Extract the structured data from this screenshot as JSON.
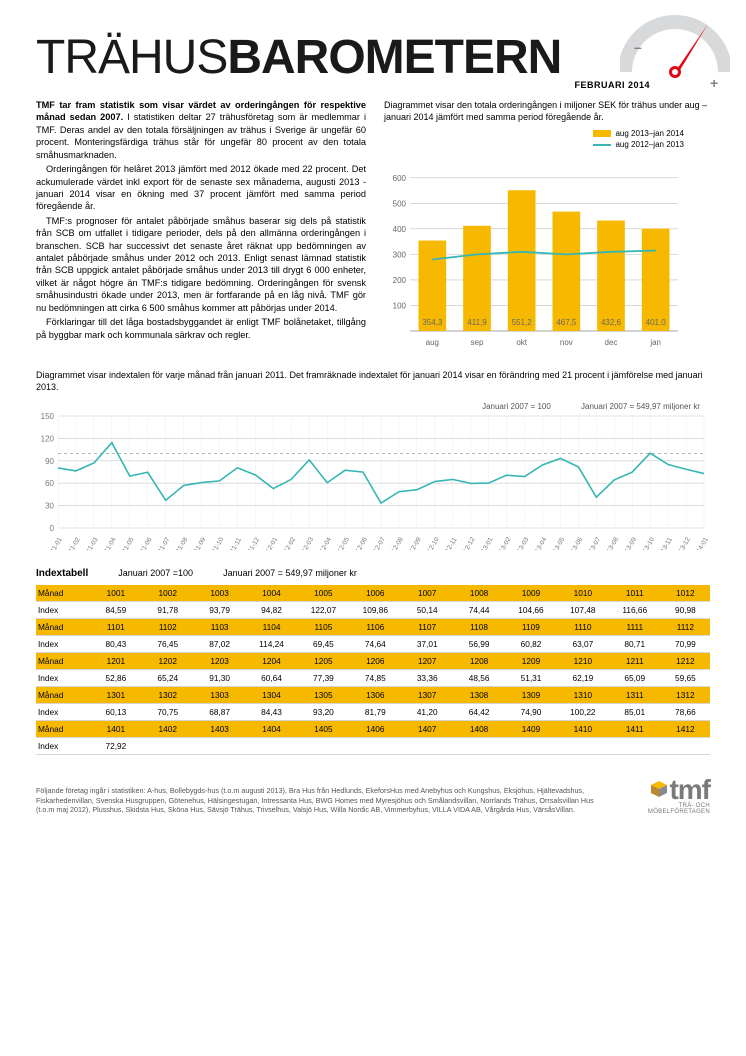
{
  "header": {
    "title_light": "TRÄHUS",
    "title_bold": "BAROMETERN",
    "subtitle": "FEBRUARI 2014"
  },
  "gauge": {
    "dial_color": "#d7d9db",
    "needle_color": "#e30613",
    "plus": "+",
    "minus": "–"
  },
  "intro": {
    "p1_lead": "TMF tar fram statistik som visar värdet av orderingången för respektive månad sedan 2007.",
    "p1_rest": " I statistiken deltar 27 trähusföretag som är medlemmar i TMF. Deras andel av den totala försäljningen av trähus i Sverige är ungefär 60 procent. Monteringsfärdiga trähus står för ungefär 80 procent av den totala småhusmarknaden.",
    "p2": "Orderingången för helåret 2013 jämfört med 2012 ökade med 22 procent. Det ackumulerade värdet inkl export för de senaste sex månaderna, augusti 2013 - januari 2014 visar en ökning med 37 procent jämfört med samma period föregående år.",
    "p3": "TMF:s prognoser för antalet påbörjade småhus baserar sig dels på statistik från SCB om utfallet i tidigare perioder, dels på den allmänna orderingången i branschen. SCB har successivt det senaste året räknat upp bedömningen av antalet påbörjade småhus under 2012 och 2013. Enligt senast lämnad statistik från SCB uppgick antalet påbörjade småhus under 2013 till drygt 6 000 enheter, vilket är något högre än TMF:s tidigare bedömning. Orderingången för svensk småhusindustri ökade under 2013, men är fortfarande på en låg nivå. TMF gör nu bedömningen att cirka 6 500 småhus kommer att påbörjas under 2014.",
    "p4": "Förklaringar till det låga bostadsbyggandet är enligt TMF bolånetaket, tillgång på byggbar mark och kommunala särkrav och regler."
  },
  "barchart": {
    "caption": "Diagrammet visar den totala orderingången i miljoner SEK för trähus under aug – januari 2014 jämfört med samma period föregående år.",
    "legend_bar": "aug 2013–jan 2014",
    "legend_line": "aug 2012–jan 2013",
    "categories": [
      "aug",
      "sep",
      "okt",
      "nov",
      "dec",
      "jan"
    ],
    "bar_values": [
      354.3,
      411.9,
      551.2,
      467.5,
      432.6,
      401.0
    ],
    "bar_labels": [
      "354,3",
      "411,9",
      "551,2",
      "467,5",
      "432,6",
      "401,0"
    ],
    "line_values": [
      280,
      300,
      310,
      300,
      310,
      315
    ],
    "ylim": [
      0,
      650
    ],
    "yticks": [
      100,
      200,
      300,
      400,
      500,
      600
    ],
    "bar_color": "#f6b900",
    "line_color": "#35b6b4",
    "grid_color": "#bfbfbf",
    "background_color": "#ffffff"
  },
  "linechart": {
    "caption": "Diagrammet visar indextalen för varje månad från januari 2011. Det framräknade indextalet för januari 2014 visar en förändring med 21 procent i jämförelse med januari 2013.",
    "note_left": "Januari 2007 = 100",
    "note_right": "Januari 2007 = 549,97 miljoner kr",
    "ylim": [
      0,
      150
    ],
    "yticks": [
      0,
      30,
      60,
      90,
      120,
      150
    ],
    "ref_line": 100,
    "x_labels": [
      "11-01",
      "11-02",
      "11-03",
      "11-04",
      "11-05",
      "11-06",
      "11-07",
      "11-08",
      "11-09",
      "11-10",
      "11-11",
      "11-12",
      "12-01",
      "12-02",
      "12-03",
      "12-04",
      "12-05",
      "12-06",
      "12-07",
      "12-08",
      "12-09",
      "12-10",
      "12-11",
      "12-12",
      "13-01",
      "13-02",
      "13-03",
      "13-04",
      "13-05",
      "13-06",
      "13-07",
      "13-08",
      "13-09",
      "13-10",
      "13-11",
      "13-12",
      "14-01"
    ],
    "values": [
      80.43,
      76.45,
      87.02,
      114.24,
      69.45,
      74.64,
      37.01,
      56.99,
      60.82,
      63.07,
      80.71,
      70.99,
      52.86,
      65.24,
      91.3,
      60.64,
      77.39,
      74.85,
      33.36,
      48.56,
      51.31,
      62.19,
      65.09,
      59.65,
      60.13,
      70.75,
      68.87,
      84.43,
      93.2,
      81.79,
      41.2,
      64.42,
      74.9,
      100.22,
      85.01,
      78.66,
      72.92
    ],
    "line_color": "#35b6b4",
    "grid_color": "#c7c7c7"
  },
  "indextable": {
    "title": "Indextabell",
    "sub1": "Januari 2007 =100",
    "sub2": "Januari 2007 = 549,97 miljoner kr",
    "row_label_month": "Månad",
    "row_label_index": "Index",
    "rows": [
      {
        "months": [
          "1001",
          "1002",
          "1003",
          "1004",
          "1005",
          "1006",
          "1007",
          "1008",
          "1009",
          "1010",
          "1011",
          "1012"
        ],
        "index": [
          "84,59",
          "91,78",
          "93,79",
          "94,82",
          "122,07",
          "109,86",
          "50,14",
          "74,44",
          "104,66",
          "107,48",
          "116,66",
          "90,98"
        ]
      },
      {
        "months": [
          "1101",
          "1102",
          "1103",
          "1104",
          "1105",
          "1106",
          "1107",
          "1108",
          "1109",
          "1110",
          "1111",
          "1112"
        ],
        "index": [
          "80,43",
          "76,45",
          "87,02",
          "114,24",
          "69,45",
          "74,64",
          "37,01",
          "56,99",
          "60,82",
          "63,07",
          "80,71",
          "70,99"
        ]
      },
      {
        "months": [
          "1201",
          "1202",
          "1203",
          "1204",
          "1205",
          "1206",
          "1207",
          "1208",
          "1209",
          "1210",
          "1211",
          "1212"
        ],
        "index": [
          "52,86",
          "65,24",
          "91,30",
          "60,64",
          "77,39",
          "74,85",
          "33,36",
          "48,56",
          "51,31",
          "62,19",
          "65,09",
          "59,65"
        ]
      },
      {
        "months": [
          "1301",
          "1302",
          "1303",
          "1304",
          "1305",
          "1306",
          "1307",
          "1308",
          "1309",
          "1310",
          "1311",
          "1312"
        ],
        "index": [
          "60,13",
          "70,75",
          "68,87",
          "84,43",
          "93,20",
          "81,79",
          "41,20",
          "64,42",
          "74,90",
          "100,22",
          "85,01",
          "78,66"
        ]
      },
      {
        "months": [
          "1401",
          "1402",
          "1403",
          "1404",
          "1405",
          "1406",
          "1407",
          "1408",
          "1409",
          "1410",
          "1411",
          "1412"
        ],
        "index": [
          "72,92",
          "",
          "",
          "",
          "",
          "",
          "",
          "",
          "",
          "",
          "",
          ""
        ]
      }
    ]
  },
  "footer": {
    "text": "Följande företag ingår i statistiken: A-hus, Bollebygds-hus (t.o.m augusti 2013), Bra Hus från Hedlunds, EkeforsHus med Anebyhus och Kungshus, Eksjöhus, Hjältevadshus, Fiskarhedenvillan, Svenska Husgruppen, Götenehus, Hälsingestugan, Intressanta Hus, BWG Homes med Myresjöhus och Smålandsvillan, Norrlands Trähus, Orrsalsvillan Hus (t.o.m maj 2012), Plusshus, Skidsta Hus, Sköna Hus, Sävsjö Trähus, Trivselhus, Valsjö Hus, Willa Nordic AB, Vimmerbyhus, VILLA VIDA AB, Vårgårda Hus, VärsåsVillan.",
    "logo_text": "tmf",
    "logo_sub": "TRÄ- OCH MÖBELFÖRETAGEN",
    "logo_gray": "#7a7a7a",
    "logo_accent1": "#f6b900",
    "logo_accent2": "#b98a2e"
  }
}
